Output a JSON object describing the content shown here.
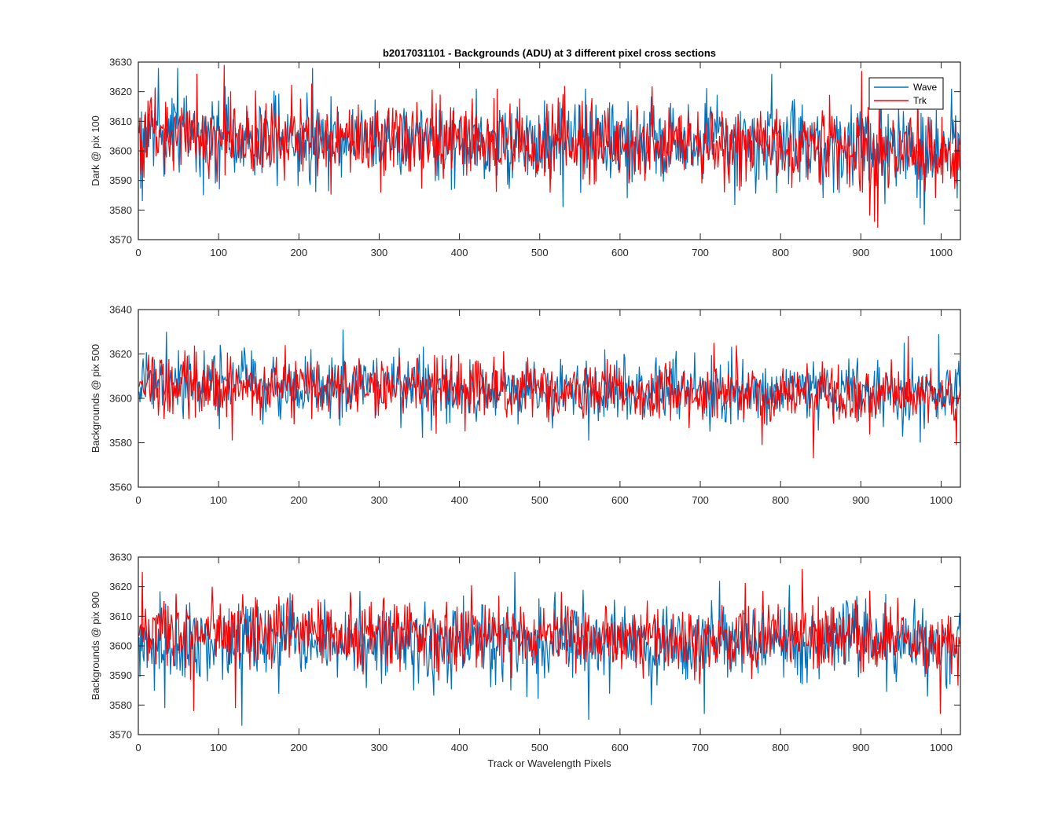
{
  "figure": {
    "title": "b2017031101 - Backgrounds (ADU) at 3 different pixel cross sections",
    "xlabel": "Track or Wavelength Pixels"
  },
  "colors": {
    "Wave": "#0072BD",
    "Trk": "#FF0000",
    "axis": "#262626"
  },
  "chart_data": [
    {
      "type": "line",
      "ylabel": "Dark @ pix 100",
      "xlim": [
        0,
        1024
      ],
      "ylim": [
        3570,
        3630
      ],
      "xticks": [
        0,
        100,
        200,
        300,
        400,
        500,
        600,
        700,
        800,
        900,
        1000
      ],
      "yticks": [
        3570,
        3580,
        3590,
        3600,
        3610,
        3620,
        3630
      ],
      "legend": {
        "location": "top-right",
        "entries": [
          "Wave",
          "Trk"
        ]
      },
      "series": [
        {
          "name": "Wave",
          "mean_start": 3605,
          "mean_end": 3601,
          "std": 7.0,
          "spikes": [
            [
              4,
              3583
            ],
            [
              24,
              3628
            ],
            [
              48,
              3628
            ],
            [
              80,
              3585
            ],
            [
              216,
              3628
            ],
            [
              420,
              3621
            ],
            [
              556,
              3621
            ],
            [
              528,
              3581
            ],
            [
              788,
              3626
            ],
            [
              924,
              3620
            ],
            [
              978,
              3575
            ],
            [
              1012,
              3621
            ]
          ]
        },
        {
          "name": "Trk",
          "mean_start": 3605,
          "mean_end": 3600,
          "std": 6.5,
          "spikes": [
            [
              106,
              3629
            ],
            [
              72,
              3626
            ],
            [
              20,
              3621
            ],
            [
              446,
              3621
            ],
            [
              900,
              3627
            ],
            [
              916,
              3576
            ],
            [
              920,
              3574
            ],
            [
              970,
              3623
            ],
            [
              1018,
              3589
            ]
          ]
        }
      ]
    },
    {
      "type": "line",
      "ylabel": "Backgrounds @ pix 500",
      "xlim": [
        0,
        1024
      ],
      "ylim": [
        3560,
        3640
      ],
      "xticks": [
        0,
        100,
        200,
        300,
        400,
        500,
        600,
        700,
        800,
        900,
        1000
      ],
      "yticks": [
        3560,
        3580,
        3600,
        3620,
        3640
      ],
      "series": [
        {
          "name": "Wave",
          "mean_start": 3606,
          "mean_end": 3602,
          "std": 7.0,
          "spikes": [
            [
              34,
              3630
            ],
            [
              254,
              3631
            ],
            [
              996,
              3629
            ],
            [
              560,
              3581
            ]
          ]
        },
        {
          "name": "Trk",
          "mean_start": 3606,
          "mean_end": 3601,
          "std": 6.5,
          "spikes": [
            [
              116,
              3581
            ],
            [
              182,
              3624
            ],
            [
              716,
              3625
            ],
            [
              776,
              3579
            ],
            [
              840,
              3573
            ],
            [
              958,
              3628
            ],
            [
              1018,
              3579
            ]
          ]
        }
      ]
    },
    {
      "type": "line",
      "ylabel": "Backgrounds @ pix 900",
      "xlim": [
        0,
        1024
      ],
      "ylim": [
        3570,
        3630
      ],
      "xticks": [
        0,
        100,
        200,
        300,
        400,
        500,
        600,
        700,
        800,
        900,
        1000
      ],
      "yticks": [
        3570,
        3580,
        3590,
        3600,
        3610,
        3620,
        3630
      ],
      "series": [
        {
          "name": "Wave",
          "mean_start": 3601,
          "mean_end": 3601,
          "std": 7.0,
          "spikes": [
            [
              128,
              3573
            ],
            [
              468,
              3625
            ],
            [
              560,
              3575
            ],
            [
              704,
              3577
            ],
            [
              32,
              3579
            ]
          ]
        },
        {
          "name": "Trk",
          "mean_start": 3605,
          "mean_end": 3602,
          "std": 6.0,
          "spikes": [
            [
              4,
              3625
            ],
            [
              68,
              3578
            ],
            [
              120,
              3579
            ],
            [
              826,
              3626
            ],
            [
              998,
              3577
            ]
          ]
        }
      ]
    }
  ]
}
